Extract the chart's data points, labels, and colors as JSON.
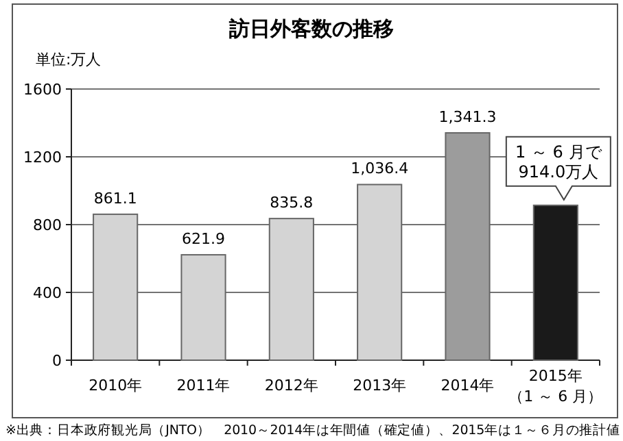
{
  "chart_data": {
    "type": "bar",
    "title": "訪日外客数の推移",
    "ylabel": "単位:万人",
    "categories": [
      "2010年",
      "2011年",
      "2012年",
      "2013年",
      "2014年",
      "2015年（1 ～ 6 月）"
    ],
    "values": [
      861.1,
      621.9,
      835.8,
      1036.4,
      1341.3,
      914
    ],
    "colors": [
      "#d4d4d4",
      "#d4d4d4",
      "#d4d4d4",
      "#d4d4d4",
      "#9c9c9c",
      "#1a1a1a"
    ],
    "value_labels": [
      "861.1",
      "621.9",
      "835.8",
      "1,036.4",
      "1,341.3",
      null
    ],
    "ylim": [
      0,
      1600
    ],
    "yticks": [
      0,
      400,
      800,
      1200,
      1600
    ],
    "grid": "y",
    "annotations": [
      {
        "text": "1 ～ 6 月で\n914.0万人",
        "x": "2015年（1 ～ 6 月）",
        "y": 914
      },
      "※出典：日本政府観光局（JNTO）　2010～2014年は年間値（確定値）、2015年は１～６月の推計値"
    ]
  }
}
